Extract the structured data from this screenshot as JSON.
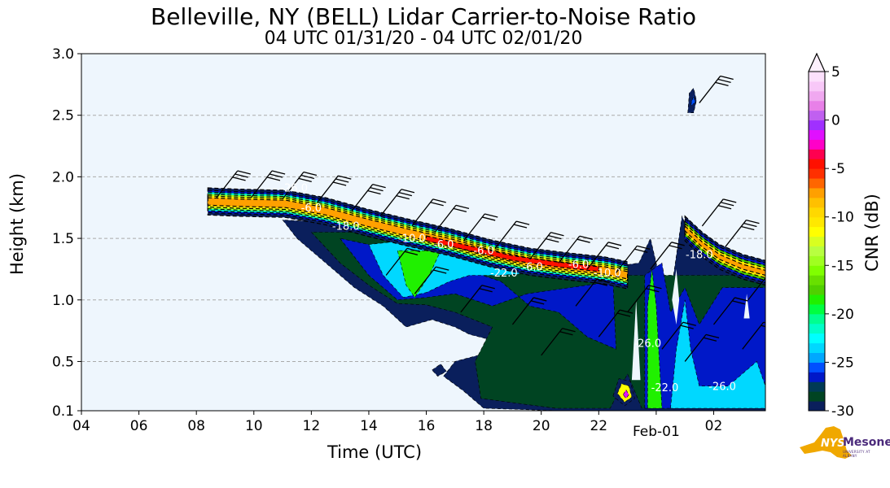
{
  "chart_data": {
    "type": "heatmap",
    "subtype": "filled-contour",
    "title": "Belleville, NY (BELL) Lidar Carrier-to-Noise Ratio",
    "subtitle": "04 UTC 01/31/20 - 04 UTC 02/01/20",
    "xlabel": "Time (UTC)",
    "ylabel": "Height (km)",
    "xlim_hours": [
      4,
      27.8
    ],
    "ylim": [
      0.1,
      3.0
    ],
    "grid": "horizontal dashed",
    "xticks": [
      {
        "hour": 4,
        "label": "04"
      },
      {
        "hour": 6,
        "label": "06"
      },
      {
        "hour": 8,
        "label": "08"
      },
      {
        "hour": 10,
        "label": "10"
      },
      {
        "hour": 12,
        "label": "12"
      },
      {
        "hour": 14,
        "label": "14"
      },
      {
        "hour": 16,
        "label": "16"
      },
      {
        "hour": 18,
        "label": "18"
      },
      {
        "hour": 20,
        "label": "20"
      },
      {
        "hour": 22,
        "label": "22"
      },
      {
        "hour": 24,
        "label": "Feb-01",
        "lower": true
      },
      {
        "hour": 26,
        "label": "02"
      }
    ],
    "yticks": [
      {
        "value": 0.1,
        "label": "0.1"
      },
      {
        "value": 0.5,
        "label": "0.5"
      },
      {
        "value": 1.0,
        "label": "1.0"
      },
      {
        "value": 1.5,
        "label": "1.5"
      },
      {
        "value": 2.0,
        "label": "2.0"
      },
      {
        "value": 2.5,
        "label": "2.5"
      },
      {
        "value": 3.0,
        "label": "3.0"
      }
    ],
    "colorbar": {
      "label": "CNR (dB)",
      "range": [
        -30,
        5
      ],
      "extend": "max",
      "ticks": [
        {
          "value": 5,
          "label": "5"
        },
        {
          "value": 0,
          "label": "0"
        },
        {
          "value": -5,
          "label": "-5"
        },
        {
          "value": -10,
          "label": "-10"
        },
        {
          "value": -15,
          "label": "-15"
        },
        {
          "value": -20,
          "label": "-20"
        },
        {
          "value": -25,
          "label": "-25"
        },
        {
          "value": -30,
          "label": "-30"
        }
      ],
      "colors": [
        "#0a1f5c",
        "#004422",
        "#003a55",
        "#0018c8",
        "#0050ff",
        "#00a8ff",
        "#00d8ff",
        "#00ffff",
        "#00ffc8",
        "#00ff90",
        "#00ff40",
        "#20f000",
        "#50d000",
        "#68e000",
        "#80ff00",
        "#a0ff20",
        "#b8ff40",
        "#d8ff20",
        "#ffff00",
        "#ffe800",
        "#ffd800",
        "#ffc000",
        "#ffa000",
        "#ff6600",
        "#ff3000",
        "#ff1000",
        "#ff0050",
        "#ff00c8",
        "#e010ff",
        "#a030ff",
        "#c060f0",
        "#e880e8",
        "#f0a8f0",
        "#f8c8f8",
        "#fce0fc"
      ],
      "extend_color": "#fdf0fd"
    },
    "regions": [
      {
        "level": -30,
        "points": [
          [
            11.0,
            1.65
          ],
          [
            11.5,
            1.5
          ],
          [
            12.5,
            1.3
          ],
          [
            13.5,
            1.1
          ],
          [
            14.5,
            0.95
          ],
          [
            15.3,
            0.78
          ],
          [
            16.2,
            0.84
          ],
          [
            17.0,
            0.78
          ],
          [
            17.5,
            0.72
          ],
          [
            18.5,
            0.66
          ],
          [
            17.8,
            0.55
          ],
          [
            17.0,
            0.5
          ],
          [
            16.6,
            0.38
          ],
          [
            17.3,
            0.26
          ],
          [
            18.0,
            0.12
          ],
          [
            20.6,
            0.1
          ],
          [
            27.8,
            0.1
          ],
          [
            27.8,
            1.25
          ],
          [
            26.0,
            1.3
          ],
          [
            25.2,
            1.5
          ],
          [
            24.9,
            1.68
          ],
          [
            24.6,
            1.2
          ],
          [
            24.1,
            1.2
          ],
          [
            23.8,
            1.5
          ],
          [
            23.4,
            1.3
          ],
          [
            22.0,
            1.25
          ],
          [
            15.0,
            1.6
          ]
        ]
      },
      {
        "level": -29,
        "points": [
          [
            12.0,
            1.55
          ],
          [
            13.0,
            1.3
          ],
          [
            14.0,
            1.12
          ],
          [
            15.0,
            0.97
          ],
          [
            16.0,
            0.96
          ],
          [
            17.0,
            0.9
          ],
          [
            18.3,
            0.78
          ],
          [
            17.7,
            0.5
          ],
          [
            17.9,
            0.2
          ],
          [
            19.5,
            0.15
          ],
          [
            20.5,
            0.12
          ],
          [
            22.4,
            0.12
          ],
          [
            23.0,
            0.4
          ],
          [
            23.5,
            0.12
          ],
          [
            27.8,
            0.12
          ],
          [
            27.8,
            1.2
          ],
          [
            23.0,
            1.2
          ],
          [
            20.0,
            1.3
          ],
          [
            15.0,
            1.55
          ]
        ]
      },
      {
        "level": -27,
        "points": [
          [
            13.0,
            1.5
          ],
          [
            14.0,
            1.2
          ],
          [
            15.0,
            1.0
          ],
          [
            16.0,
            1.02
          ],
          [
            17.0,
            1.05
          ],
          [
            18.3,
            0.95
          ],
          [
            19.5,
            1.05
          ],
          [
            21.0,
            1.1
          ],
          [
            22.5,
            1.15
          ],
          [
            22.6,
            0.6
          ],
          [
            21.6,
            0.7
          ],
          [
            20.6,
            0.9
          ],
          [
            19.6,
            0.95
          ],
          [
            18.6,
            1.15
          ],
          [
            16.0,
            1.35
          ]
        ]
      },
      {
        "level": -27,
        "points": [
          [
            23.6,
            0.12
          ],
          [
            23.6,
            1.2
          ],
          [
            24.2,
            1.3
          ],
          [
            24.5,
            0.9
          ],
          [
            25.0,
            1.1
          ],
          [
            25.5,
            0.8
          ],
          [
            26.3,
            1.1
          ],
          [
            27.8,
            1.1
          ],
          [
            27.8,
            0.12
          ]
        ]
      },
      {
        "level": -24,
        "points": [
          [
            14.0,
            1.45
          ],
          [
            14.5,
            1.2
          ],
          [
            15.2,
            1.02
          ],
          [
            16.0,
            1.06
          ],
          [
            16.8,
            1.15
          ],
          [
            17.5,
            1.2
          ],
          [
            18.5,
            1.2
          ],
          [
            20.0,
            1.22
          ],
          [
            19.0,
            1.35
          ],
          [
            16.0,
            1.5
          ]
        ]
      },
      {
        "level": -24,
        "points": [
          [
            24.5,
            0.12
          ],
          [
            24.7,
            0.6
          ],
          [
            25.0,
            1.0
          ],
          [
            25.2,
            0.6
          ],
          [
            25.5,
            0.3
          ],
          [
            26.5,
            0.3
          ],
          [
            27.5,
            0.5
          ],
          [
            27.8,
            0.3
          ],
          [
            27.8,
            0.12
          ]
        ]
      },
      {
        "level": -19,
        "points": [
          [
            15.0,
            1.4
          ],
          [
            15.3,
            1.12
          ],
          [
            15.6,
            1.02
          ],
          [
            16.1,
            1.2
          ],
          [
            16.5,
            1.4
          ]
        ]
      },
      {
        "level": -19,
        "points": [
          [
            23.7,
            0.12
          ],
          [
            23.7,
            0.95
          ],
          [
            23.85,
            1.25
          ],
          [
            24.0,
            0.95
          ],
          [
            24.2,
            0.12
          ]
        ]
      },
      {
        "level": -30,
        "points": [
          [
            22.5,
            0.22
          ],
          [
            22.7,
            0.36
          ],
          [
            23.1,
            0.34
          ],
          [
            23.25,
            0.2
          ],
          [
            22.9,
            0.14
          ]
        ]
      },
      {
        "level": -12,
        "points": [
          [
            22.65,
            0.24
          ],
          [
            22.8,
            0.32
          ],
          [
            23.05,
            0.3
          ],
          [
            23.15,
            0.21
          ],
          [
            22.9,
            0.17
          ]
        ]
      },
      {
        "level": -2,
        "points": [
          [
            22.85,
            0.23
          ],
          [
            22.95,
            0.27
          ],
          [
            23.05,
            0.23
          ],
          [
            22.95,
            0.2
          ]
        ]
      },
      {
        "level": -30,
        "points": [
          [
            25.1,
            2.52
          ],
          [
            25.15,
            2.68
          ],
          [
            25.3,
            2.72
          ],
          [
            25.4,
            2.62
          ],
          [
            25.3,
            2.52
          ]
        ]
      },
      {
        "level": -26,
        "points": [
          [
            25.2,
            2.58
          ],
          [
            25.3,
            2.66
          ],
          [
            25.35,
            2.6
          ]
        ]
      },
      {
        "level": -30,
        "points": [
          [
            16.2,
            0.43
          ],
          [
            16.5,
            0.48
          ],
          [
            16.7,
            0.42
          ],
          [
            16.4,
            0.38
          ]
        ]
      },
      {
        "level": null,
        "points": [
          [
            23.15,
            0.35
          ],
          [
            23.3,
            1.0
          ],
          [
            23.45,
            0.35
          ]
        ]
      },
      {
        "level": null,
        "points": [
          [
            24.55,
            1.0
          ],
          [
            24.7,
            1.25
          ],
          [
            24.8,
            1.0
          ],
          [
            24.7,
            0.8
          ]
        ]
      },
      {
        "level": null,
        "points": [
          [
            27.05,
            0.85
          ],
          [
            27.15,
            1.05
          ],
          [
            27.25,
            0.85
          ]
        ]
      }
    ],
    "bands": [
      {
        "center": [
          [
            8.4,
            1.8
          ],
          [
            9.4,
            1.79
          ],
          [
            11.1,
            1.78
          ],
          [
            12.5,
            1.72
          ],
          [
            13.9,
            1.63
          ],
          [
            15.3,
            1.55
          ],
          [
            16.8,
            1.47
          ],
          [
            18.2,
            1.38
          ],
          [
            19.6,
            1.31
          ],
          [
            21.0,
            1.27
          ],
          [
            22.2,
            1.24
          ],
          [
            23.0,
            1.2
          ]
        ],
        "layers": [
          {
            "level": -30,
            "half_km": 0.11
          },
          {
            "level": -27,
            "half_km": 0.09
          },
          {
            "level": -22,
            "half_km": 0.075
          },
          {
            "level": -15,
            "half_km": 0.06
          },
          {
            "level": -11,
            "half_km": 0.045
          },
          {
            "level": -8,
            "half_km": 0.03
          }
        ]
      },
      {
        "center": [
          [
            16.0,
            1.5
          ],
          [
            17.5,
            1.42
          ],
          [
            19.0,
            1.34
          ],
          [
            20.5,
            1.29
          ],
          [
            22.0,
            1.25
          ]
        ],
        "layers": [
          {
            "level": -5,
            "half_km": 0.02
          }
        ]
      },
      {
        "center": [
          [
            25.0,
            1.58
          ],
          [
            25.6,
            1.45
          ],
          [
            26.2,
            1.35
          ],
          [
            27.0,
            1.27
          ],
          [
            27.8,
            1.22
          ]
        ],
        "layers": [
          {
            "level": -30,
            "half_km": 0.1
          },
          {
            "level": -27,
            "half_km": 0.08
          },
          {
            "level": -18,
            "half_km": 0.06
          },
          {
            "level": -11,
            "half_km": 0.04
          },
          {
            "level": -8,
            "half_km": 0.02
          }
        ]
      }
    ],
    "contour_labels": [
      {
        "text": "-26.0",
        "hour": 11.4,
        "km": 1.88
      },
      {
        "text": "-6.0",
        "hour": 12.0,
        "km": 1.72
      },
      {
        "text": "-18.0",
        "hour": 13.2,
        "km": 1.57
      },
      {
        "text": "-10.0",
        "hour": 15.5,
        "km": 1.47
      },
      {
        "text": "-6.0",
        "hour": 16.6,
        "km": 1.42
      },
      {
        "text": "-6.0",
        "hour": 18.0,
        "km": 1.37
      },
      {
        "text": "-22.0",
        "hour": 18.7,
        "km": 1.19
      },
      {
        "text": "-6.0",
        "hour": 19.7,
        "km": 1.24
      },
      {
        "text": "-6.0",
        "hour": 21.3,
        "km": 1.26
      },
      {
        "text": "-10.0",
        "hour": 22.3,
        "km": 1.19
      },
      {
        "text": "-26.0",
        "hour": 23.7,
        "km": 0.62
      },
      {
        "text": "-22.0",
        "hour": 24.3,
        "km": 0.26
      },
      {
        "text": "-26.0",
        "hour": 26.3,
        "km": 0.27
      },
      {
        "text": "-18.0",
        "hour": 25.5,
        "km": 1.34
      }
    ],
    "wind_barbs": [
      {
        "hour": 8.7,
        "km": 1.83,
        "speed_kt": 30
      },
      {
        "hour": 9.9,
        "km": 1.83,
        "speed_kt": 30
      },
      {
        "hour": 11.0,
        "km": 1.82,
        "speed_kt": 30
      },
      {
        "hour": 12.2,
        "km": 1.79,
        "speed_kt": 30
      },
      {
        "hour": 13.4,
        "km": 1.72,
        "speed_kt": 30
      },
      {
        "hour": 14.4,
        "km": 1.68,
        "speed_kt": 30
      },
      {
        "hour": 15.5,
        "km": 1.6,
        "speed_kt": 20
      },
      {
        "hour": 16.3,
        "km": 1.55,
        "speed_kt": 20
      },
      {
        "hour": 17.3,
        "km": 1.48,
        "speed_kt": 20
      },
      {
        "hour": 18.4,
        "km": 1.42,
        "speed_kt": 20
      },
      {
        "hour": 19.6,
        "km": 1.33,
        "speed_kt": 30
      },
      {
        "hour": 20.6,
        "km": 1.3,
        "speed_kt": 20
      },
      {
        "hour": 21.6,
        "km": 1.25,
        "speed_kt": 20
      },
      {
        "hour": 22.6,
        "km": 1.22,
        "speed_kt": 20
      },
      {
        "hour": 23.8,
        "km": 1.25,
        "speed_kt": 20
      },
      {
        "hour": 25.6,
        "km": 1.6,
        "speed_kt": 30
      },
      {
        "hour": 26.4,
        "km": 1.43,
        "speed_kt": 30
      },
      {
        "hour": 25.5,
        "km": 2.6,
        "speed_kt": 30
      },
      {
        "hour": 14.6,
        "km": 1.2,
        "speed_kt": 20
      },
      {
        "hour": 15.6,
        "km": 1.05,
        "speed_kt": 20
      },
      {
        "hour": 17.2,
        "km": 0.9,
        "speed_kt": 20
      },
      {
        "hour": 19.0,
        "km": 0.8,
        "speed_kt": 20
      },
      {
        "hour": 20.0,
        "km": 0.55,
        "speed_kt": 20
      },
      {
        "hour": 21.2,
        "km": 0.95,
        "speed_kt": 20
      },
      {
        "hour": 22.0,
        "km": 0.7,
        "speed_kt": 20
      },
      {
        "hour": 23.0,
        "km": 0.9,
        "speed_kt": 20
      },
      {
        "hour": 24.2,
        "km": 0.6,
        "speed_kt": 20
      },
      {
        "hour": 25.0,
        "km": 0.5,
        "speed_kt": 20
      },
      {
        "hour": 26.0,
        "km": 0.8,
        "speed_kt": 20
      },
      {
        "hour": 27.0,
        "km": 0.6,
        "speed_kt": 20
      },
      {
        "hour": 27.2,
        "km": 1.0,
        "speed_kt": 20
      }
    ]
  },
  "logo": {
    "nys": "NYS",
    "mesonet": "Mesonet",
    "university": "UNIVERSITY AT ALBANY"
  },
  "colors": {
    "plot_bg": "#eef6fd",
    "grid": "#aaaaaa",
    "logo_gold": "#f0a800",
    "logo_purple": "#4b2a7b"
  }
}
